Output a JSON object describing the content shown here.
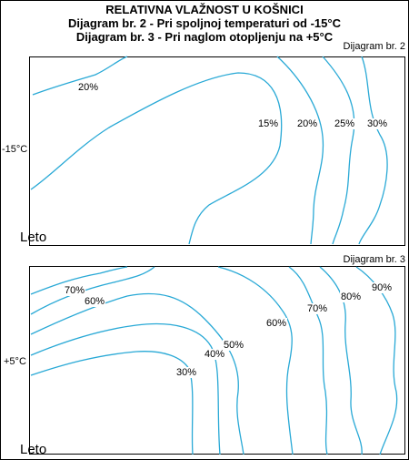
{
  "title": {
    "line1": "RELATIVNA VLAŽNOST U KOŠNICI",
    "line2": "Dijagram br. 2 - Pri spoljnoj temperaturi od -15°C",
    "line3": "Dijagram br. 3 - Pri naglom otopljenju na +5°C"
  },
  "diagram_top": {
    "caption": "Dijagram br. 2",
    "side_label": "-15°C",
    "corner_label": "Leto",
    "contour_labels": [
      "20%",
      "15%",
      "20%",
      "25%",
      "30%"
    ],
    "line_color": "#29a9d6"
  },
  "diagram_bottom": {
    "caption": "Dijagram br. 3",
    "side_label": "+5°C",
    "corner_label": "Leto",
    "contour_labels": [
      "70%",
      "60%",
      "50%",
      "40%",
      "30%",
      "60%",
      "70%",
      "80%",
      "90%"
    ],
    "line_color": "#29a9d6"
  }
}
